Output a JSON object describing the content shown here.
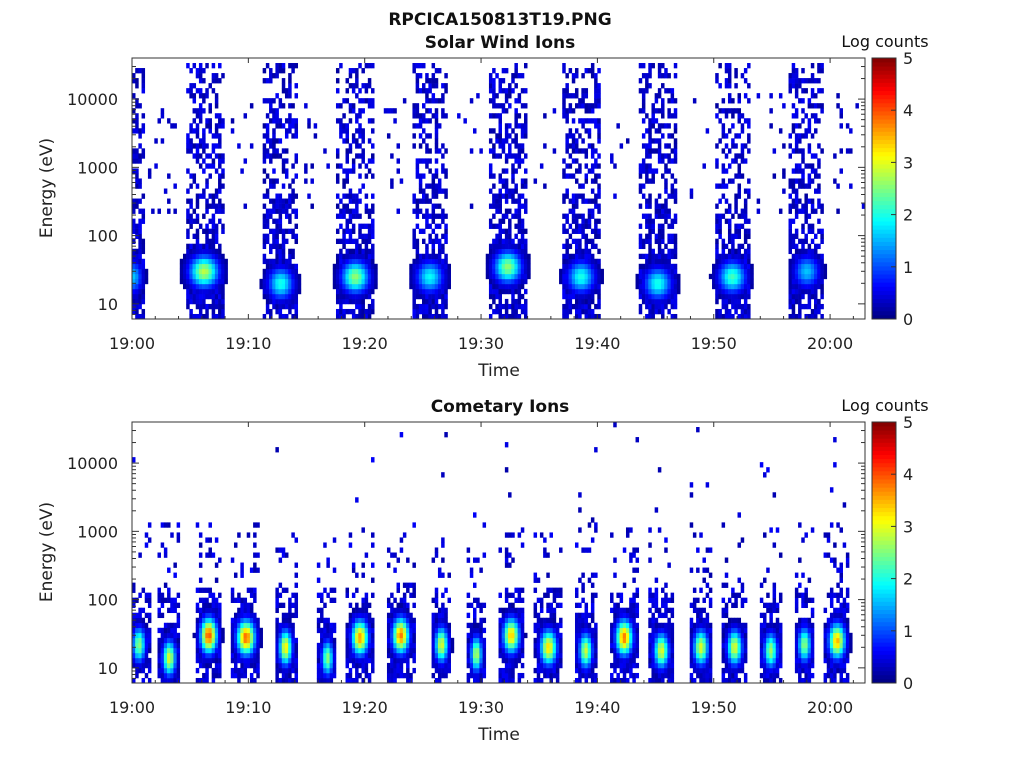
{
  "figure": {
    "title": "RPCICA150813T19.PNG"
  },
  "colormap": {
    "name": "jet",
    "stops": [
      "#00007f",
      "#0000ff",
      "#007fff",
      "#00ffff",
      "#7fff7f",
      "#ffff00",
      "#ff7f00",
      "#ff0000",
      "#7f0000"
    ]
  },
  "chart_data": [
    {
      "type": "heatmap",
      "title": "Solar Wind Ions",
      "xlabel": "Time",
      "ylabel": "Energy (eV)",
      "x_ticks": [
        "19:00",
        "19:10",
        "19:20",
        "19:30",
        "19:40",
        "19:50",
        "20:00"
      ],
      "x_range_minutes": [
        0,
        63
      ],
      "y_scale": "log",
      "y_ticks": [
        "10",
        "100",
        "1000",
        "10000"
      ],
      "y_range": [
        6,
        40000
      ],
      "colorbar": {
        "label": "Log counts",
        "range": [
          0,
          5
        ],
        "ticks": [
          "0",
          "1",
          "2",
          "3",
          "4",
          "5"
        ]
      },
      "bursts": [
        {
          "center_min": 0.1,
          "halfwidth_min": 1.0,
          "peak_energy_eV": 25,
          "peak_log_counts": 1.6
        },
        {
          "center_min": 6.2,
          "halfwidth_min": 1.6,
          "peak_energy_eV": 30,
          "peak_log_counts": 2.8
        },
        {
          "center_min": 12.8,
          "halfwidth_min": 1.4,
          "peak_energy_eV": 20,
          "peak_log_counts": 2.0
        },
        {
          "center_min": 19.2,
          "halfwidth_min": 1.5,
          "peak_energy_eV": 25,
          "peak_log_counts": 2.6
        },
        {
          "center_min": 25.6,
          "halfwidth_min": 1.5,
          "peak_energy_eV": 25,
          "peak_log_counts": 1.9
        },
        {
          "center_min": 32.3,
          "halfwidth_min": 1.5,
          "peak_energy_eV": 35,
          "peak_log_counts": 2.6
        },
        {
          "center_min": 38.6,
          "halfwidth_min": 1.5,
          "peak_energy_eV": 25,
          "peak_log_counts": 2.0
        },
        {
          "center_min": 45.2,
          "halfwidth_min": 1.5,
          "peak_energy_eV": 20,
          "peak_log_counts": 2.0
        },
        {
          "center_min": 51.6,
          "halfwidth_min": 1.5,
          "peak_energy_eV": 25,
          "peak_log_counts": 2.2
        },
        {
          "center_min": 58.0,
          "halfwidth_min": 1.4,
          "peak_energy_eV": 30,
          "peak_log_counts": 1.6
        }
      ]
    },
    {
      "type": "heatmap",
      "title": "Cometary Ions",
      "xlabel": "Time",
      "ylabel": "Energy (eV)",
      "x_ticks": [
        "19:00",
        "19:10",
        "19:20",
        "19:30",
        "19:40",
        "19:50",
        "20:00"
      ],
      "x_range_minutes": [
        0,
        63
      ],
      "y_scale": "log",
      "y_ticks": [
        "10",
        "100",
        "1000",
        "10000"
      ],
      "y_range": [
        6,
        40000
      ],
      "colorbar": {
        "label": "Log counts",
        "range": [
          0,
          5
        ],
        "ticks": [
          "0",
          "1",
          "2",
          "3",
          "4",
          "5"
        ]
      },
      "bursts": [
        {
          "center_min": 0.6,
          "halfwidth_min": 0.8,
          "peak_energy_eV": 22,
          "peak_log_counts": 2.6
        },
        {
          "center_min": 3.2,
          "halfwidth_min": 0.8,
          "peak_energy_eV": 14,
          "peak_log_counts": 3.0
        },
        {
          "center_min": 6.6,
          "halfwidth_min": 1.0,
          "peak_energy_eV": 30,
          "peak_log_counts": 4.0
        },
        {
          "center_min": 9.8,
          "halfwidth_min": 1.1,
          "peak_energy_eV": 28,
          "peak_log_counts": 3.9
        },
        {
          "center_min": 13.2,
          "halfwidth_min": 0.8,
          "peak_energy_eV": 20,
          "peak_log_counts": 3.2
        },
        {
          "center_min": 16.8,
          "halfwidth_min": 0.7,
          "peak_energy_eV": 14,
          "peak_log_counts": 2.6
        },
        {
          "center_min": 19.6,
          "halfwidth_min": 1.0,
          "peak_energy_eV": 28,
          "peak_log_counts": 3.6
        },
        {
          "center_min": 23.1,
          "halfwidth_min": 1.0,
          "peak_energy_eV": 30,
          "peak_log_counts": 3.8
        },
        {
          "center_min": 26.6,
          "halfwidth_min": 0.8,
          "peak_energy_eV": 22,
          "peak_log_counts": 3.0
        },
        {
          "center_min": 29.6,
          "halfwidth_min": 0.7,
          "peak_energy_eV": 16,
          "peak_log_counts": 2.8
        },
        {
          "center_min": 32.6,
          "halfwidth_min": 1.0,
          "peak_energy_eV": 30,
          "peak_log_counts": 3.4
        },
        {
          "center_min": 35.8,
          "halfwidth_min": 1.0,
          "peak_energy_eV": 20,
          "peak_log_counts": 3.3
        },
        {
          "center_min": 39.0,
          "halfwidth_min": 0.8,
          "peak_energy_eV": 18,
          "peak_log_counts": 2.9
        },
        {
          "center_min": 42.3,
          "halfwidth_min": 1.0,
          "peak_energy_eV": 28,
          "peak_log_counts": 3.8
        },
        {
          "center_min": 45.5,
          "halfwidth_min": 0.9,
          "peak_energy_eV": 18,
          "peak_log_counts": 3.0
        },
        {
          "center_min": 48.9,
          "halfwidth_min": 0.9,
          "peak_energy_eV": 20,
          "peak_log_counts": 3.0
        },
        {
          "center_min": 51.8,
          "halfwidth_min": 0.9,
          "peak_energy_eV": 20,
          "peak_log_counts": 3.0
        },
        {
          "center_min": 54.9,
          "halfwidth_min": 0.8,
          "peak_energy_eV": 18,
          "peak_log_counts": 2.7
        },
        {
          "center_min": 57.8,
          "halfwidth_min": 0.8,
          "peak_energy_eV": 22,
          "peak_log_counts": 2.6
        },
        {
          "center_min": 60.6,
          "halfwidth_min": 1.0,
          "peak_energy_eV": 25,
          "peak_log_counts": 3.5
        }
      ]
    }
  ]
}
